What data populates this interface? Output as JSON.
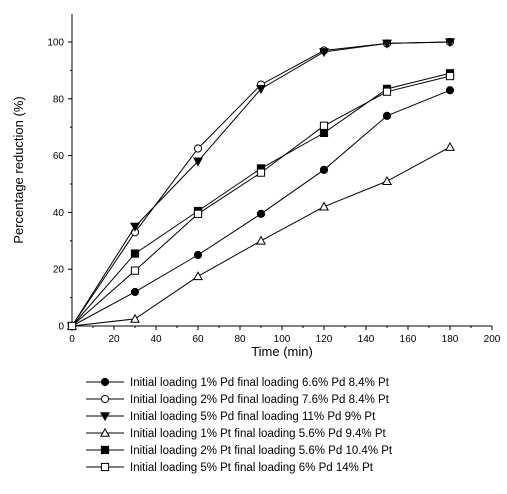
{
  "chart_data": {
    "type": "line",
    "title": "",
    "xlabel": "Time (min)",
    "ylabel": "Percentage reduction (%)",
    "xlim": [
      0,
      200
    ],
    "ylim": [
      0,
      110
    ],
    "x_ticks": [
      0,
      20,
      40,
      60,
      80,
      100,
      120,
      140,
      160,
      180,
      200
    ],
    "y_ticks": [
      0,
      20,
      40,
      60,
      80,
      100
    ],
    "grid": false,
    "legend_position": "below",
    "x": [
      0,
      30,
      60,
      90,
      120,
      150,
      180
    ],
    "series": [
      {
        "name": "Initial loading 1% Pd final loading 6.6% Pd 8.4% Pt",
        "marker": "filled-circle",
        "values": [
          0,
          12,
          25,
          39.5,
          55,
          74,
          83
        ]
      },
      {
        "name": "Initial loading 2% Pd final loading 7.6% Pd 8.4% Pt",
        "marker": "open-circle",
        "values": [
          0,
          33,
          62.5,
          85,
          97,
          99.5,
          100
        ]
      },
      {
        "name": "Initial loading 5% Pd final loading 11% Pd 9% Pt",
        "marker": "filled-triangle-down",
        "values": [
          0,
          35,
          58,
          83.5,
          96.5,
          99.5,
          100
        ]
      },
      {
        "name": "Initial loading 1% Pt final loading 5.6% Pd 9.4% Pt",
        "marker": "open-triangle-up",
        "values": [
          0,
          2.5,
          17.5,
          30,
          42,
          51,
          63
        ]
      },
      {
        "name": "Initial loading 2% Pt final loading 5.6% Pd 10.4% Pt",
        "marker": "filled-square",
        "values": [
          0,
          25.5,
          40.5,
          55.5,
          68,
          83.5,
          89
        ]
      },
      {
        "name": "Initial loading 5% Pt final loading 6% Pd 14% Pt",
        "marker": "open-square",
        "values": [
          0,
          19.5,
          39.5,
          54,
          70.5,
          82.5,
          88
        ]
      }
    ]
  }
}
